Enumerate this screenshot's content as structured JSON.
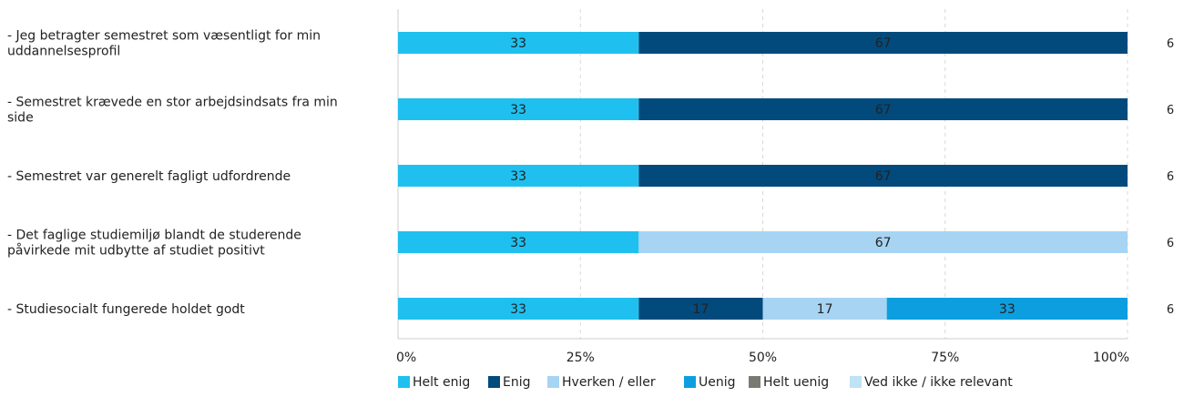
{
  "chart_data": {
    "type": "bar",
    "orientation": "horizontal",
    "stacked": "percent",
    "categories": [
      [
        "- Jeg betragter semestret som væsentligt for min",
        "uddannelsesprofil"
      ],
      [
        "- Semestret krævede en stor arbejdsindsats fra min",
        "side"
      ],
      [
        "- Semestret var generelt fagligt udfordrende"
      ],
      [
        "- Det faglige studiemiljø blandt de studerende",
        "påvirkede mit udbytte af studiet positivt"
      ],
      [
        "- Studiesocialt fungerede holdet godt"
      ]
    ],
    "n": [
      "6",
      "6",
      "6",
      "6",
      "6"
    ],
    "series": [
      {
        "name": "Helt enig",
        "color": "#1fc0ef",
        "values": [
          33,
          33,
          33,
          33,
          33
        ]
      },
      {
        "name": "Enig",
        "color": "#034a7c",
        "values": [
          67,
          67,
          67,
          0,
          17
        ]
      },
      {
        "name": "Hverken / eller",
        "color": "#a7d4f3",
        "values": [
          0,
          0,
          0,
          67,
          17
        ]
      },
      {
        "name": "Uenig",
        "color": "#0d9ee0",
        "values": [
          0,
          0,
          0,
          0,
          33
        ]
      },
      {
        "name": "Helt uenig",
        "color": "#7a7a72",
        "values": [
          0,
          0,
          0,
          0,
          0
        ]
      },
      {
        "name": "Ved ikke / ikke relevant",
        "color": "#bfe2f6",
        "values": [
          0,
          0,
          0,
          0,
          0
        ]
      }
    ],
    "x_ticks": [
      "0%",
      "25%",
      "50%",
      "75%",
      "100%"
    ],
    "xlim": [
      0,
      100
    ],
    "grid": true,
    "legend_position": "bottom"
  }
}
